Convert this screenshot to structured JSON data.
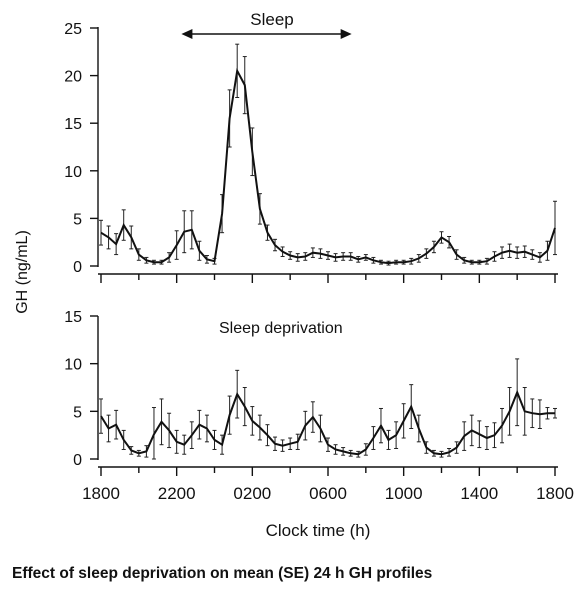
{
  "caption": "Effect of sleep deprivation on mean (SE) 24 h GH profiles",
  "chart_data": [
    {
      "type": "line",
      "panel": "top",
      "annotation": "Sleep",
      "annotation_span_x": [
        22.25,
        31.25
      ],
      "ylabel": "GH (ng/mL)",
      "ylim": [
        0,
        25
      ],
      "yticks": [
        0,
        5,
        10,
        15,
        20,
        25
      ],
      "xlim": [
        18,
        42
      ],
      "grid": false,
      "error_bars": "SE",
      "x": [
        18.0,
        18.4,
        18.8,
        19.2,
        19.6,
        20.0,
        20.4,
        20.8,
        21.2,
        21.6,
        22.0,
        22.4,
        22.8,
        23.2,
        23.6,
        24.0,
        24.4,
        24.8,
        25.2,
        25.6,
        26.0,
        26.4,
        26.8,
        27.2,
        27.6,
        28.0,
        28.4,
        28.8,
        29.2,
        29.6,
        30.0,
        30.4,
        30.8,
        31.2,
        31.6,
        32.0,
        32.4,
        32.8,
        33.2,
        33.6,
        34.0,
        34.4,
        34.8,
        35.2,
        35.6,
        36.0,
        36.4,
        36.8,
        37.2,
        37.6,
        38.0,
        38.4,
        38.8,
        39.2,
        39.6,
        40.0,
        40.4,
        40.8,
        41.2,
        41.6,
        42.0
      ],
      "y": [
        3.5,
        3.0,
        2.3,
        4.3,
        3.0,
        1.2,
        0.6,
        0.4,
        0.4,
        0.9,
        2.2,
        3.6,
        3.8,
        1.6,
        0.7,
        0.5,
        5.5,
        15.5,
        20.5,
        19.0,
        12.0,
        6.0,
        3.5,
        2.2,
        1.5,
        1.1,
        0.9,
        1.0,
        1.4,
        1.3,
        1.1,
        0.9,
        1.0,
        1.0,
        0.7,
        0.9,
        0.6,
        0.4,
        0.3,
        0.4,
        0.4,
        0.5,
        0.8,
        1.3,
        2.0,
        3.0,
        2.5,
        1.2,
        0.6,
        0.4,
        0.4,
        0.5,
        1.0,
        1.4,
        1.6,
        1.4,
        1.5,
        1.2,
        0.9,
        1.6,
        4.0
      ],
      "se": [
        1.3,
        1.2,
        1.1,
        1.6,
        1.2,
        0.6,
        0.3,
        0.2,
        0.2,
        0.5,
        1.5,
        2.2,
        2.0,
        1.0,
        0.4,
        0.3,
        2.0,
        3.0,
        2.8,
        3.0,
        2.5,
        1.6,
        0.8,
        0.6,
        0.5,
        0.4,
        0.4,
        0.4,
        0.5,
        0.5,
        0.4,
        0.4,
        0.4,
        0.4,
        0.3,
        0.3,
        0.3,
        0.2,
        0.2,
        0.2,
        0.2,
        0.3,
        0.4,
        0.5,
        0.6,
        0.6,
        0.6,
        0.5,
        0.3,
        0.2,
        0.2,
        0.3,
        0.5,
        0.6,
        0.7,
        0.6,
        0.6,
        0.5,
        0.5,
        1.0,
        2.8
      ]
    },
    {
      "type": "line",
      "panel": "bottom",
      "annotation": "Sleep deprivation",
      "ylim": [
        0,
        15
      ],
      "yticks": [
        0,
        5,
        10,
        15
      ],
      "xlim": [
        18,
        42
      ],
      "xlabel": "Clock time (h)",
      "xtick_labels": [
        "1800",
        "2200",
        "0200",
        "0600",
        "1000",
        "1400",
        "1800"
      ],
      "grid": false,
      "error_bars": "SE",
      "x": [
        18.0,
        18.4,
        18.8,
        19.2,
        19.6,
        20.0,
        20.4,
        20.8,
        21.2,
        21.6,
        22.0,
        22.4,
        22.8,
        23.2,
        23.6,
        24.0,
        24.4,
        24.8,
        25.2,
        25.6,
        26.0,
        26.4,
        26.8,
        27.2,
        27.6,
        28.0,
        28.4,
        28.8,
        29.2,
        29.6,
        30.0,
        30.4,
        30.8,
        31.2,
        31.6,
        32.0,
        32.4,
        32.8,
        33.2,
        33.6,
        34.0,
        34.4,
        34.8,
        35.2,
        35.6,
        36.0,
        36.4,
        36.8,
        37.2,
        37.6,
        38.0,
        38.4,
        38.8,
        39.2,
        39.6,
        40.0,
        40.4,
        40.8,
        41.2,
        41.6,
        42.0
      ],
      "y": [
        4.5,
        3.2,
        3.6,
        2.0,
        0.9,
        0.6,
        0.8,
        2.6,
        3.9,
        3.0,
        1.8,
        1.5,
        2.5,
        3.6,
        3.2,
        2.0,
        1.5,
        4.6,
        6.8,
        5.5,
        4.0,
        3.3,
        2.5,
        1.6,
        1.4,
        1.6,
        1.8,
        3.5,
        4.4,
        3.2,
        1.5,
        1.0,
        0.8,
        0.6,
        0.5,
        1.0,
        2.2,
        3.5,
        2.0,
        2.5,
        4.0,
        5.5,
        3.2,
        1.2,
        0.6,
        0.5,
        0.7,
        1.2,
        2.4,
        3.0,
        2.6,
        2.2,
        2.5,
        3.5,
        5.0,
        7.0,
        5.0,
        4.8,
        4.7,
        4.8,
        4.8
      ],
      "se": [
        1.8,
        1.4,
        1.5,
        1.0,
        0.4,
        0.3,
        0.6,
        2.8,
        2.4,
        1.8,
        1.2,
        1.0,
        1.4,
        1.5,
        1.4,
        1.0,
        1.0,
        2.0,
        2.5,
        2.0,
        1.5,
        1.3,
        1.1,
        0.7,
        0.6,
        0.6,
        0.8,
        1.5,
        1.6,
        1.4,
        0.7,
        0.5,
        0.4,
        0.3,
        0.3,
        0.6,
        1.2,
        1.8,
        1.0,
        1.4,
        1.8,
        2.3,
        1.4,
        0.6,
        0.3,
        0.3,
        0.4,
        0.6,
        1.5,
        1.6,
        1.4,
        1.2,
        1.3,
        1.8,
        2.5,
        3.5,
        2.5,
        1.5,
        1.5,
        0.6,
        0.5
      ]
    }
  ]
}
